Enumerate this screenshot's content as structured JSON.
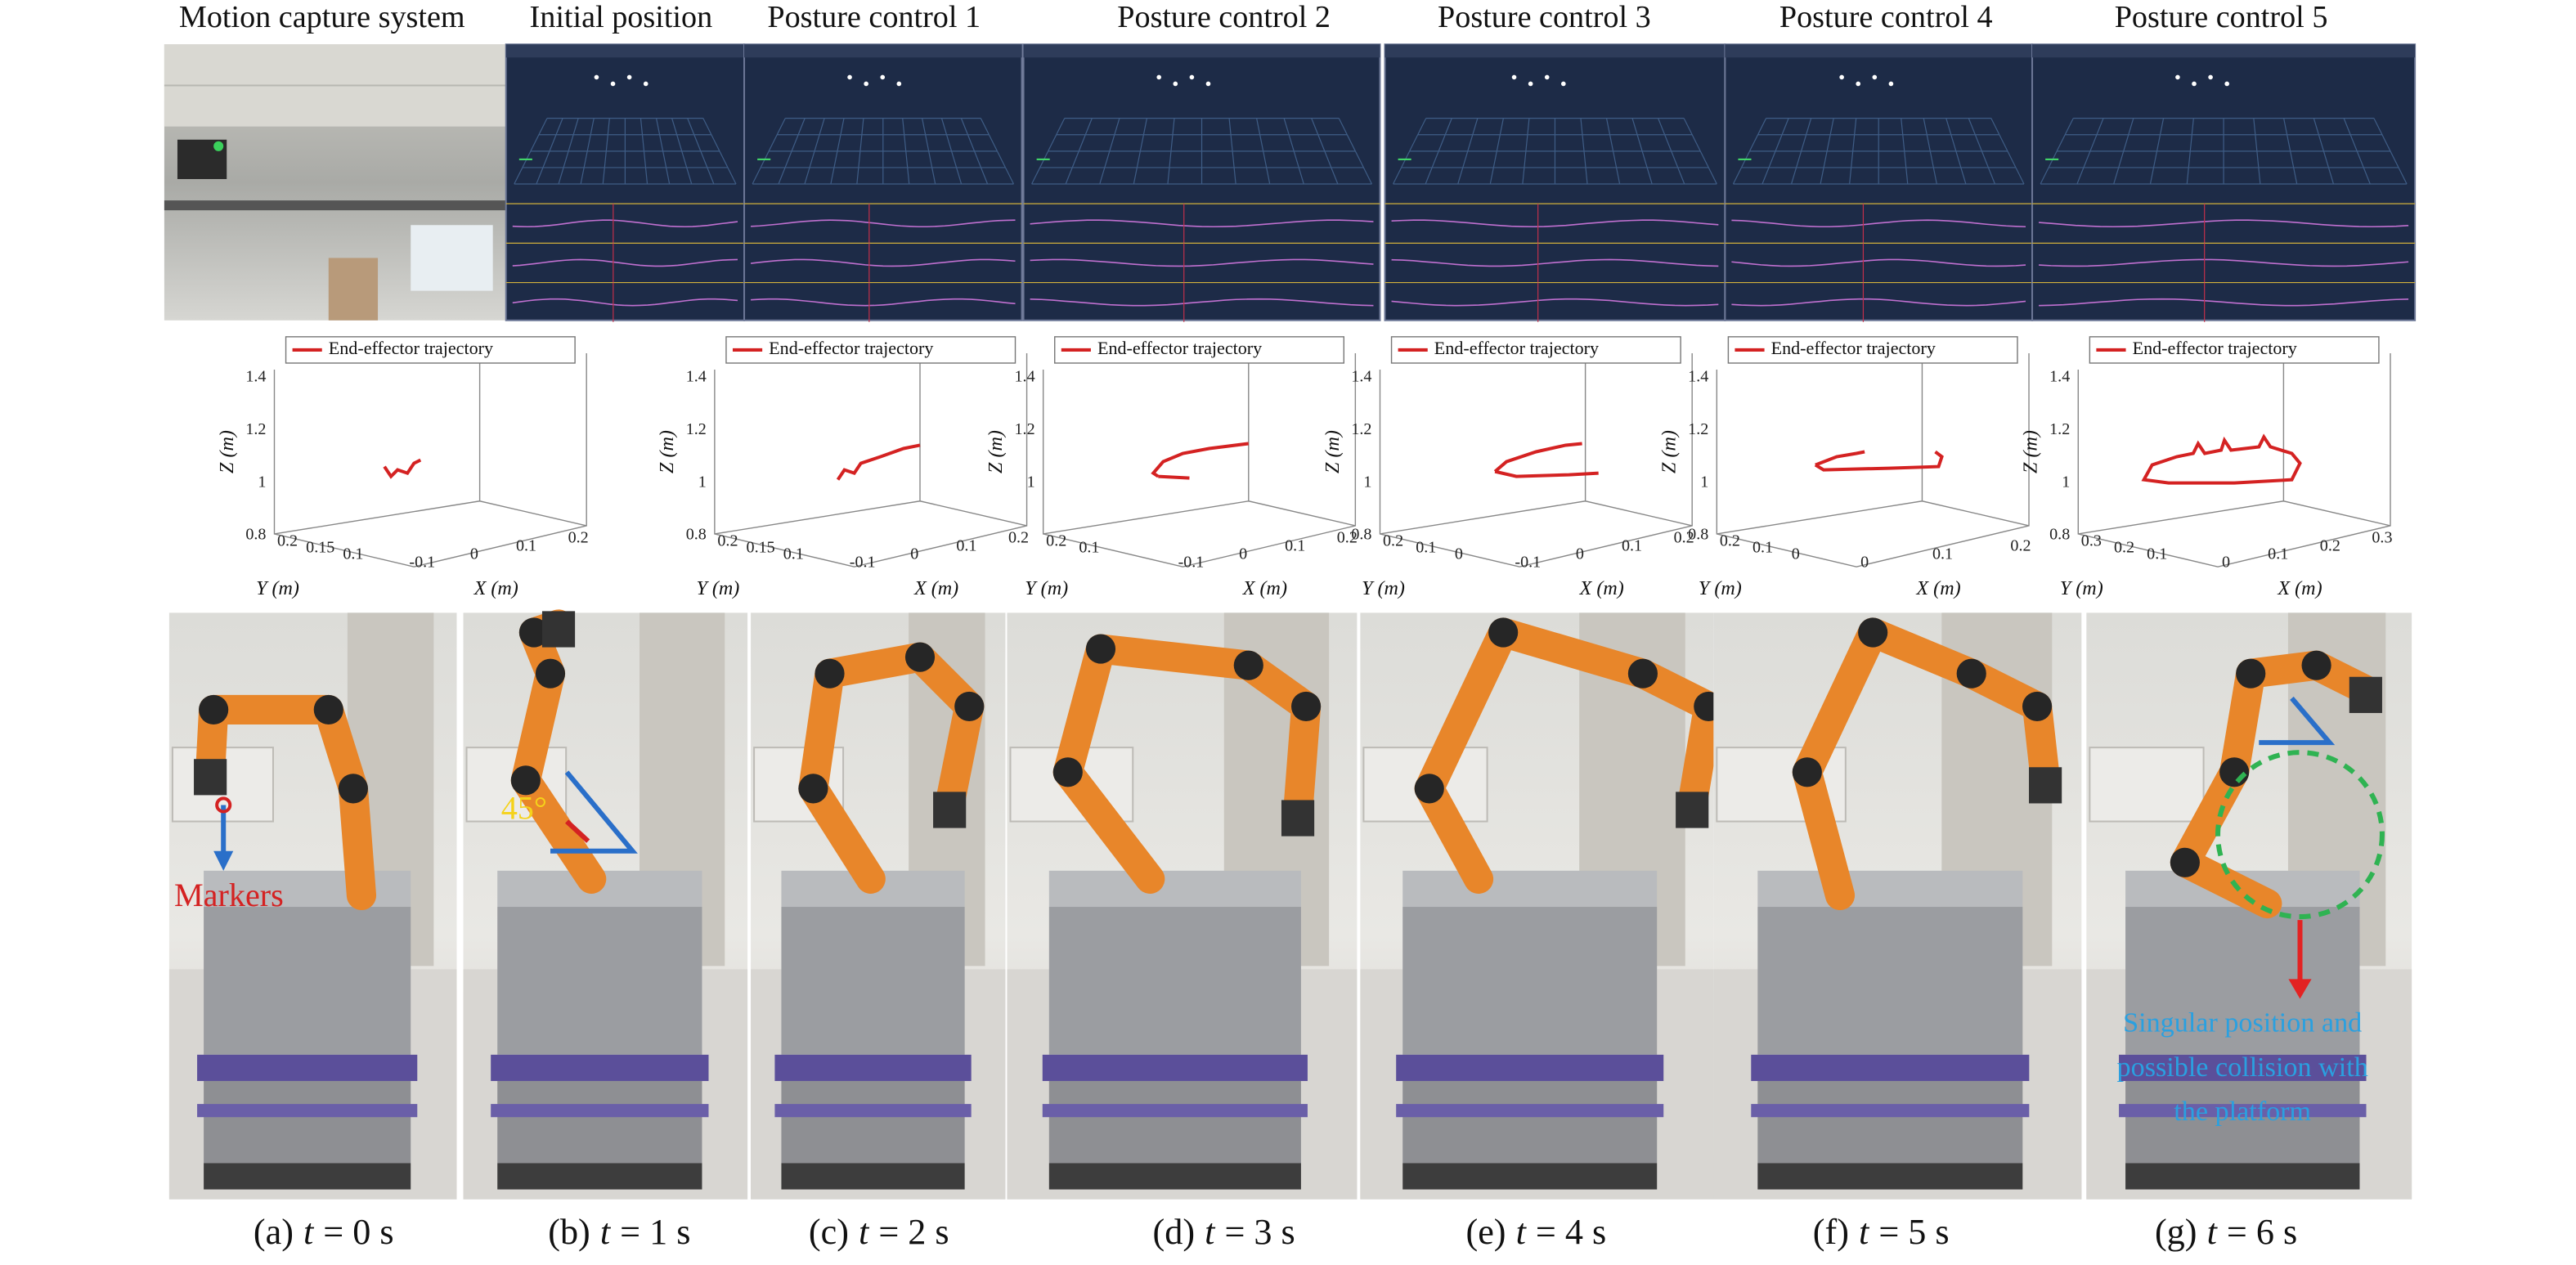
{
  "columns": [
    {
      "title": "Motion capture system",
      "caption": {
        "label": "(a)",
        "variable": "t",
        "text": "= 0 s"
      }
    },
    {
      "title": "Initial position",
      "caption": {
        "label": "(b)",
        "variable": "t",
        "text": "= 1 s"
      }
    },
    {
      "title": "Posture control 1",
      "caption": {
        "label": "(c)",
        "variable": "t",
        "text": "= 2 s"
      }
    },
    {
      "title": "Posture control 2",
      "caption": {
        "label": "(d)",
        "variable": "t",
        "text": "= 3 s"
      }
    },
    {
      "title": "Posture control 3",
      "caption": {
        "label": "(e)",
        "variable": "t",
        "text": "= 4 s"
      }
    },
    {
      "title": "Posture control 4",
      "caption": {
        "label": "(f)",
        "variable": "t",
        "text": "= 5 s"
      }
    },
    {
      "title": "Posture control 5",
      "caption": {
        "label": "(g)",
        "variable": "t",
        "text": "= 6 s"
      }
    }
  ],
  "plots": [
    {
      "legend": "End-effector trajectory",
      "z_label": "Z (m)",
      "y_label": "Y (m)",
      "x_label": "X (m)",
      "z_ticks": [
        1.4,
        1.2,
        1,
        0.8
      ],
      "y_ticks": [
        0.2,
        0.15,
        0.1
      ],
      "x_ticks": [
        -0.1,
        0,
        0.1,
        0.2
      ]
    },
    {
      "legend": "End-effector trajectory",
      "z_label": "Z (m)",
      "y_label": "Y (m)",
      "x_label": "X (m)",
      "z_ticks": [
        1.4,
        1.2,
        1,
        0.8
      ],
      "y_ticks": [
        0.2,
        0.15,
        0.1
      ],
      "x_ticks": [
        -0.1,
        0,
        0.1,
        0.2
      ]
    },
    {
      "legend": "End-effector trajectory",
      "z_label": "Z (m)",
      "y_label": "Y (m)",
      "x_label": "X (m)",
      "z_ticks": [
        1.4,
        1.2,
        1
      ],
      "y_ticks": [
        0.2,
        0.1
      ],
      "x_ticks": [
        -0.1,
        0,
        0.1,
        0.2
      ]
    },
    {
      "legend": "End-effector trajectory",
      "z_label": "Z (m)",
      "y_label": "Y (m)",
      "x_label": "X (m)",
      "z_ticks": [
        1.4,
        1.2,
        1,
        0.8
      ],
      "y_ticks": [
        0.2,
        0.1,
        0
      ],
      "x_ticks": [
        -0.1,
        0,
        0.1,
        0.2
      ]
    },
    {
      "legend": "End-effector trajectory",
      "z_label": "Z (m)",
      "y_label": "Y (m)",
      "x_label": "X (m)",
      "z_ticks": [
        1.4,
        1.2,
        1,
        0.8
      ],
      "y_ticks": [
        0.2,
        0.1,
        0
      ],
      "x_ticks": [
        0,
        0.1,
        0.2
      ]
    },
    {
      "legend": "End-effector trajectory",
      "z_label": "Z (m)",
      "y_label": "Y (m)",
      "x_label": "X (m)",
      "z_ticks": [
        1.4,
        1.2,
        1,
        0.8
      ],
      "y_ticks": [
        0.3,
        0.2,
        0.1
      ],
      "x_ticks": [
        0,
        0.1,
        0.2,
        0.3
      ]
    }
  ],
  "annotations": {
    "angle": "45°",
    "markers": "Markers",
    "singular": [
      "Singular position and",
      "possible collision with",
      "the platform"
    ]
  }
}
